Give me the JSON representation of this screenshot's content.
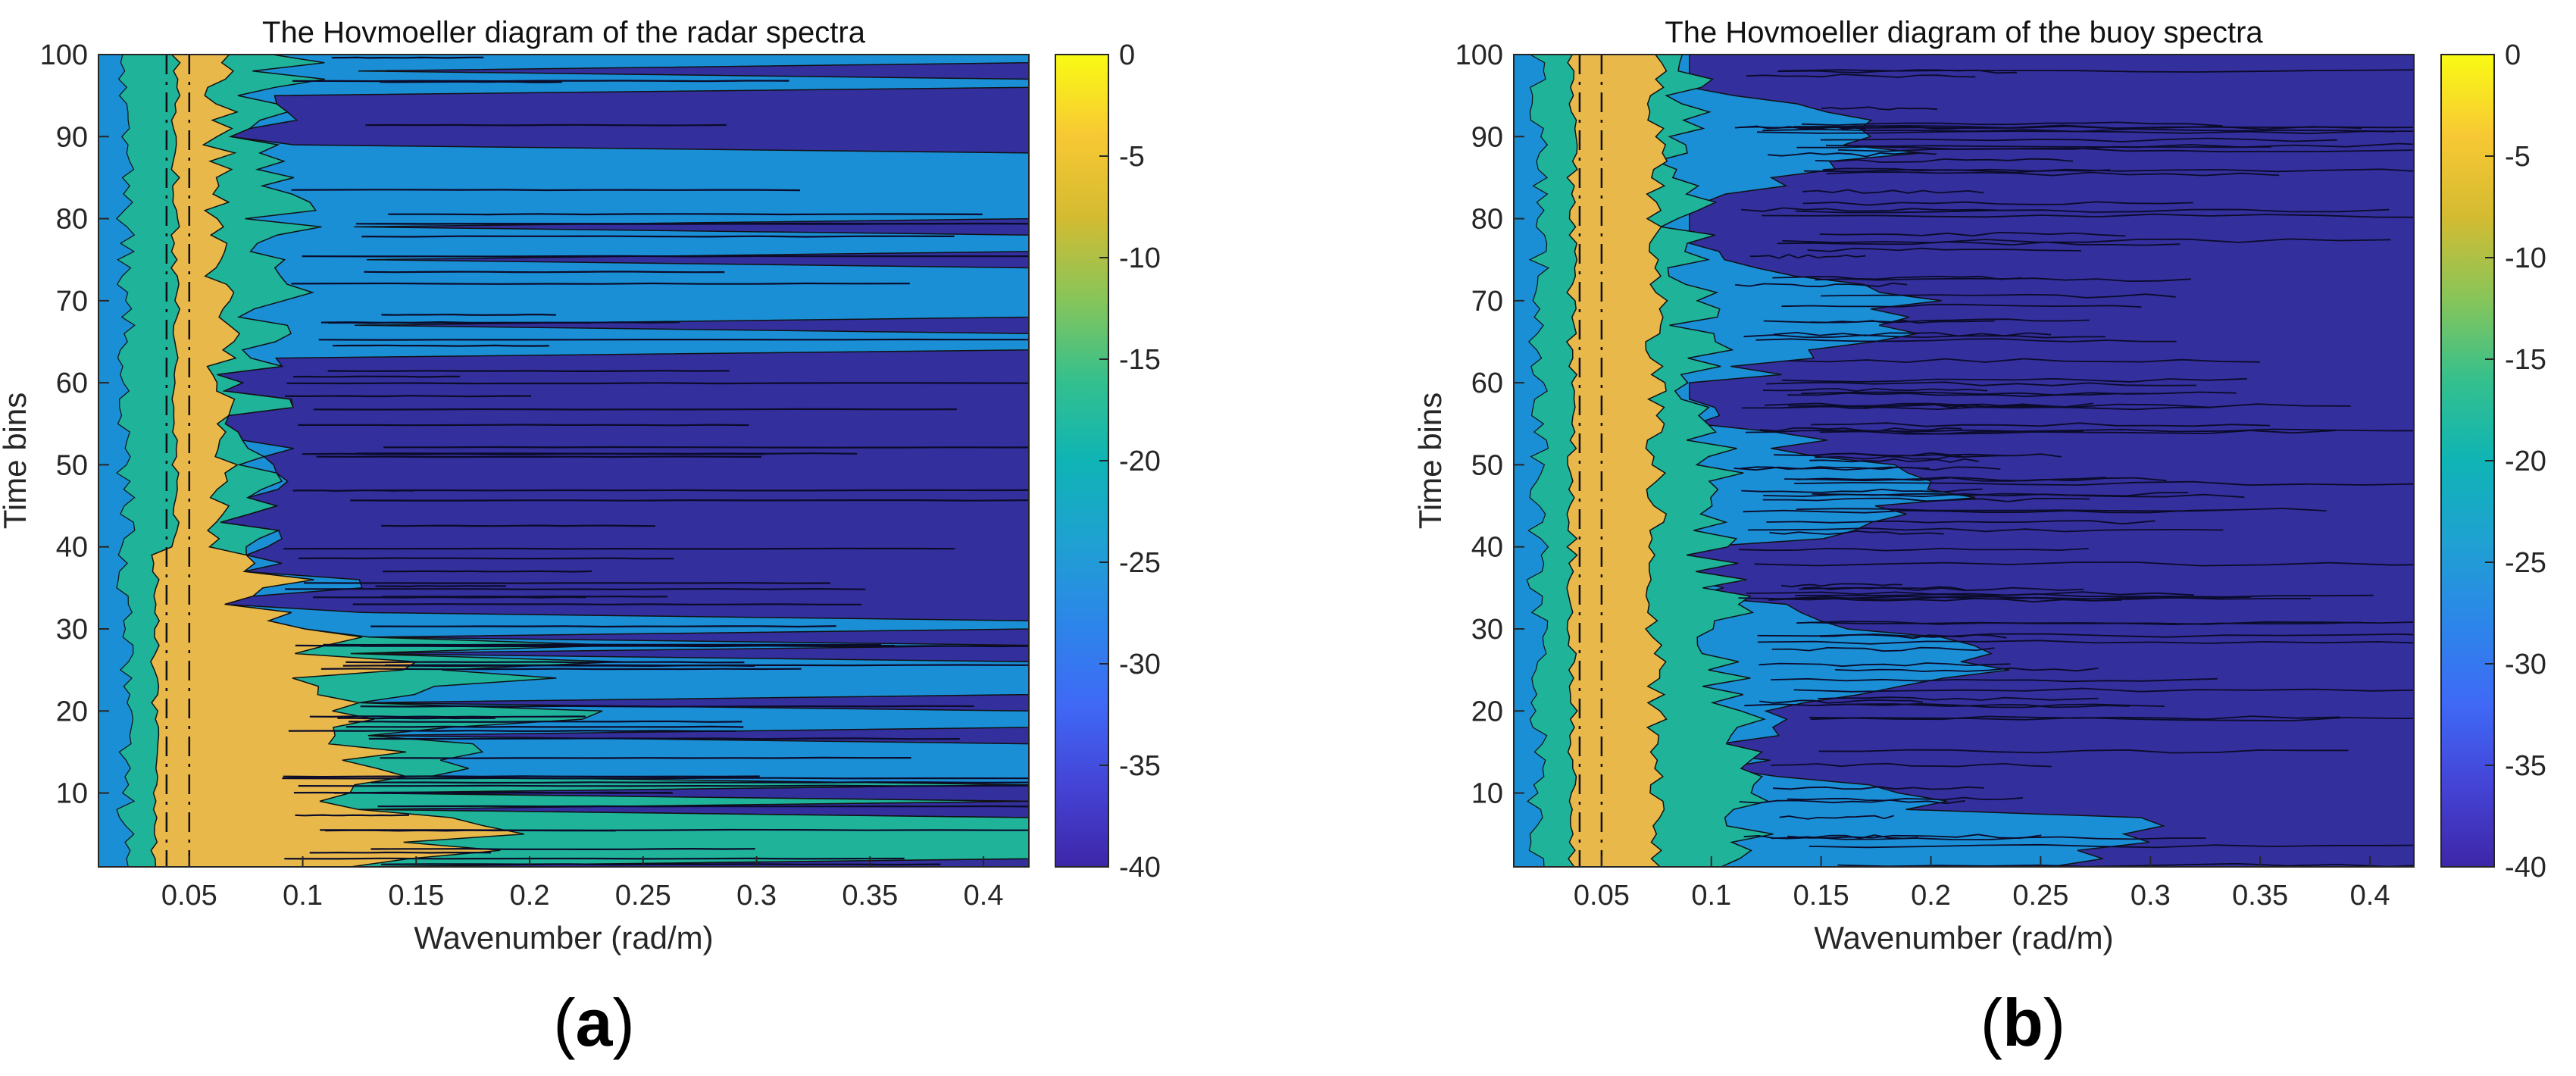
{
  "chart_data": [
    {
      "panel": "a",
      "subcaption": "a",
      "type": "heatmap",
      "subtype": "filled-contour",
      "title": "The Hovmoeller diagram of the radar spectra",
      "xlabel": "Wavenumber (rad/m)",
      "ylabel": "Time bins",
      "xlim": [
        0.01,
        0.42
      ],
      "ylim": [
        1,
        100
      ],
      "xticks": [
        0.05,
        0.1,
        0.15,
        0.2,
        0.25,
        0.3,
        0.35,
        0.4
      ],
      "xtick_labels": [
        "0.05",
        "0.1",
        "0.15",
        "0.2",
        "0.25",
        "0.3",
        "0.35",
        "0.4"
      ],
      "yticks": [
        10,
        20,
        30,
        40,
        50,
        60,
        70,
        80,
        90,
        100
      ],
      "ytick_labels": [
        "10",
        "20",
        "30",
        "40",
        "50",
        "60",
        "70",
        "80",
        "90",
        "100"
      ],
      "colorbar": {
        "label": "",
        "range": [
          -40,
          0
        ],
        "ticks": [
          0,
          -5,
          -10,
          -15,
          -20,
          -25,
          -30,
          -35,
          -40
        ],
        "tick_labels": [
          "0",
          "-5",
          "-10",
          "-15",
          "-20",
          "-25",
          "-30",
          "-35",
          "-40"
        ]
      },
      "contour_levels": [
        -10,
        -20,
        -30
      ],
      "peak_wavenumber_approx": 0.05,
      "band_colors": {
        "above_-10": "#e8b84b",
        "-10_to_-20": "#1fb39a",
        "-20_to_-30": "#1a8fd6",
        "below_-30": "#332f9c"
      }
    },
    {
      "panel": "b",
      "subcaption": "b",
      "type": "heatmap",
      "subtype": "filled-contour",
      "title": "The Hovmoeller diagram of the buoy spectra",
      "xlabel": "Wavenumber (rad/m)",
      "ylabel": "Time bins",
      "xlim": [
        0.01,
        0.42
      ],
      "ylim": [
        1,
        100
      ],
      "xticks": [
        0.05,
        0.1,
        0.15,
        0.2,
        0.25,
        0.3,
        0.35,
        0.4
      ],
      "xtick_labels": [
        "0.05",
        "0.1",
        "0.15",
        "0.2",
        "0.25",
        "0.3",
        "0.35",
        "0.4"
      ],
      "yticks": [
        10,
        20,
        30,
        40,
        50,
        60,
        70,
        80,
        90,
        100
      ],
      "ytick_labels": [
        "10",
        "20",
        "30",
        "40",
        "50",
        "60",
        "70",
        "80",
        "90",
        "100"
      ],
      "colorbar": {
        "label": "",
        "range": [
          -40,
          0
        ],
        "ticks": [
          0,
          -5,
          -10,
          -15,
          -20,
          -25,
          -30,
          -35,
          -40
        ],
        "tick_labels": [
          "0",
          "-5",
          "-10",
          "-15",
          "-20",
          "-25",
          "-30",
          "-35",
          "-40"
        ]
      },
      "contour_levels": [
        -10,
        -20,
        -30
      ],
      "peak_wavenumber_approx": 0.05,
      "band_colors": {
        "above_-10": "#e8b84b",
        "-10_to_-20": "#1fb39a",
        "-20_to_-30": "#1a8fd6",
        "below_-30": "#332f9c"
      }
    }
  ]
}
